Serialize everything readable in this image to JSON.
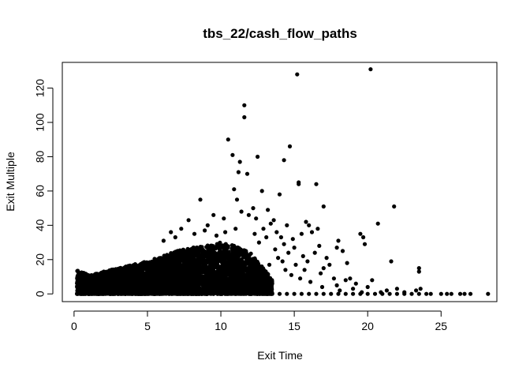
{
  "chart_data": {
    "type": "scatter",
    "title": "tbs_22/cash_flow_paths",
    "xlabel": "Exit Time",
    "ylabel": "Exit Multiple",
    "xlim": [
      -0.8,
      28.8
    ],
    "ylim": [
      -4.5,
      135
    ],
    "xticks": [
      0,
      5,
      10,
      15,
      20,
      25
    ],
    "yticks": [
      0,
      20,
      40,
      60,
      80,
      100,
      120
    ],
    "grid": false,
    "legend": "none",
    "marker_color": "#000000",
    "dense_cluster": {
      "description": "thousands of overlapping points",
      "x_range": [
        0.2,
        13.5
      ],
      "envelope": [
        [
          0.2,
          14
        ],
        [
          1,
          11
        ],
        [
          2,
          13
        ],
        [
          3,
          15
        ],
        [
          4,
          17
        ],
        [
          5,
          19
        ],
        [
          6,
          22
        ],
        [
          7,
          25
        ],
        [
          8,
          27
        ],
        [
          9,
          28
        ],
        [
          10,
          30
        ],
        [
          11,
          28
        ],
        [
          12,
          24
        ],
        [
          13,
          14
        ],
        [
          13.5,
          8
        ]
      ]
    },
    "points": [
      [
        20.2,
        131
      ],
      [
        15.2,
        128
      ],
      [
        11.6,
        110
      ],
      [
        11.6,
        103
      ],
      [
        10.5,
        90
      ],
      [
        14.7,
        86
      ],
      [
        10.8,
        81
      ],
      [
        12.5,
        80
      ],
      [
        11.3,
        77
      ],
      [
        14.3,
        78
      ],
      [
        11.2,
        71
      ],
      [
        11.8,
        70
      ],
      [
        15.3,
        65
      ],
      [
        15.3,
        64
      ],
      [
        16.5,
        64
      ],
      [
        12.8,
        60
      ],
      [
        14.0,
        58
      ],
      [
        10.9,
        61
      ],
      [
        11.1,
        55
      ],
      [
        8.6,
        55
      ],
      [
        17.0,
        51
      ],
      [
        21.8,
        51
      ],
      [
        12.2,
        50
      ],
      [
        13.2,
        49
      ],
      [
        10.2,
        44
      ],
      [
        9.5,
        46
      ],
      [
        7.8,
        43
      ],
      [
        13.6,
        43
      ],
      [
        14.5,
        40
      ],
      [
        15.8,
        42
      ],
      [
        16.0,
        40
      ],
      [
        20.7,
        41
      ],
      [
        19.5,
        35
      ],
      [
        19.7,
        33
      ],
      [
        18.0,
        31
      ],
      [
        17.9,
        27
      ],
      [
        18.3,
        25
      ],
      [
        19.8,
        29
      ],
      [
        16.6,
        38
      ],
      [
        16.2,
        36
      ],
      [
        15.5,
        35
      ],
      [
        14.9,
        32
      ],
      [
        12.9,
        38
      ],
      [
        13.8,
        36
      ],
      [
        14.1,
        33
      ],
      [
        12.4,
        44
      ],
      [
        11.9,
        46
      ],
      [
        9.1,
        40
      ],
      [
        8.9,
        37
      ],
      [
        8.2,
        35
      ],
      [
        7.3,
        38
      ],
      [
        6.6,
        36
      ],
      [
        6.1,
        31
      ],
      [
        6.9,
        33
      ],
      [
        13.4,
        41
      ],
      [
        11.4,
        48
      ],
      [
        21.6,
        19
      ],
      [
        23.5,
        15
      ],
      [
        23.5,
        13
      ],
      [
        22.0,
        3
      ],
      [
        23.3,
        2
      ],
      [
        23.6,
        3
      ],
      [
        18.6,
        18
      ],
      [
        18.8,
        9
      ],
      [
        17.4,
        17
      ],
      [
        16.7,
        28
      ],
      [
        17.2,
        21
      ],
      [
        17.0,
        15
      ],
      [
        16.4,
        24
      ],
      [
        15.9,
        19
      ],
      [
        16.8,
        12
      ],
      [
        15.6,
        22
      ],
      [
        15.1,
        17
      ],
      [
        14.6,
        24
      ],
      [
        14.2,
        19
      ],
      [
        17.7,
        9
      ],
      [
        18.5,
        8
      ],
      [
        19.2,
        6
      ],
      [
        19.0,
        3
      ],
      [
        20.0,
        4
      ],
      [
        20.3,
        8
      ],
      [
        21.3,
        2
      ],
      [
        22.5,
        1
      ],
      [
        17.9,
        5
      ],
      [
        16.1,
        7
      ],
      [
        15.4,
        9
      ],
      [
        14.8,
        11
      ],
      [
        14.4,
        14
      ],
      [
        13.9,
        21
      ],
      [
        13.7,
        26
      ],
      [
        15.0,
        27
      ],
      [
        15.7,
        14
      ],
      [
        16.9,
        4
      ],
      [
        18.1,
        2
      ],
      [
        19.6,
        1
      ],
      [
        20.9,
        1
      ],
      [
        12.6,
        30
      ],
      [
        13.1,
        33
      ],
      [
        12.3,
        35
      ],
      [
        11.0,
        38
      ],
      [
        10.3,
        36
      ],
      [
        9.7,
        34
      ],
      [
        14.3,
        29
      ],
      [
        13.3,
        17
      ],
      [
        0.2,
        0
      ],
      [
        0.5,
        0
      ],
      [
        1,
        0
      ],
      [
        1.5,
        0
      ],
      [
        2,
        0
      ],
      [
        2.5,
        0
      ],
      [
        3,
        0
      ],
      [
        3.5,
        0
      ],
      [
        4,
        0
      ],
      [
        4.5,
        0
      ],
      [
        5,
        0
      ],
      [
        5.5,
        0
      ],
      [
        6,
        0
      ],
      [
        6.5,
        0
      ],
      [
        7,
        0
      ],
      [
        7.5,
        0
      ],
      [
        8,
        0
      ],
      [
        8.5,
        0
      ],
      [
        9,
        0
      ],
      [
        9.5,
        0
      ],
      [
        10,
        0
      ],
      [
        10.5,
        0
      ],
      [
        11,
        0
      ],
      [
        11.5,
        0
      ],
      [
        12,
        0
      ],
      [
        12.5,
        0
      ],
      [
        13,
        0
      ],
      [
        13.5,
        0
      ],
      [
        14,
        0
      ],
      [
        14.5,
        0
      ],
      [
        15,
        0
      ],
      [
        15.5,
        0
      ],
      [
        16,
        0
      ],
      [
        16.5,
        0
      ],
      [
        17,
        0
      ],
      [
        17.5,
        0
      ],
      [
        18,
        0
      ],
      [
        18.5,
        0
      ],
      [
        19,
        0
      ],
      [
        19.5,
        0
      ],
      [
        20,
        0
      ],
      [
        20.5,
        0
      ],
      [
        21,
        0
      ],
      [
        21.5,
        0
      ],
      [
        22,
        0
      ],
      [
        22.5,
        0
      ],
      [
        23,
        0
      ],
      [
        23.5,
        0
      ],
      [
        24,
        0
      ],
      [
        24.3,
        0
      ],
      [
        25,
        0
      ],
      [
        25.4,
        0
      ],
      [
        25.7,
        0
      ],
      [
        26.3,
        0
      ],
      [
        26.6,
        0
      ],
      [
        27.0,
        0
      ],
      [
        28.2,
        0
      ]
    ]
  }
}
